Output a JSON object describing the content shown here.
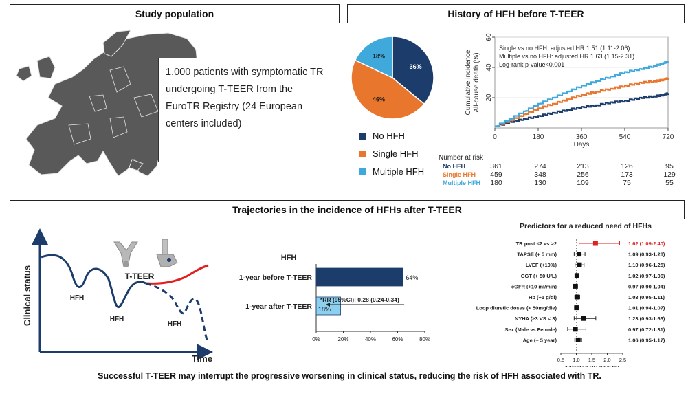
{
  "panels": {
    "study": {
      "title": "Study population",
      "text": "1,000 patients with symptomatic TR undergoing T-TEER from the EuroTR Registry (24 European centers included)"
    },
    "history": {
      "title": "History of HFH before T-TEER"
    },
    "trajectories": {
      "title": "Trajectories in the incidence of HFHs after T-TEER"
    }
  },
  "colors": {
    "no_hfh": "#1c3d6b",
    "single_hfh": "#e8762d",
    "multiple_hfh": "#40a9dc",
    "post_red": "#e02020"
  },
  "pie": {
    "slices": [
      {
        "label": "No HFH",
        "pct": 36,
        "pct_label": "36%"
      },
      {
        "label": "Single HFH",
        "pct": 46,
        "pct_label": "46%"
      },
      {
        "label": "Multiple HFH",
        "pct": 18,
        "pct_label": "18%"
      }
    ]
  },
  "km": {
    "ylabel_line1": "Cumulative incidence",
    "ylabel_line2": "All-cause death (%)",
    "xlabel": "Days",
    "yticks": [
      "20",
      "40",
      "60"
    ],
    "xticks": [
      "0",
      "180",
      "360",
      "540",
      "720"
    ],
    "annotations": [
      "Single vs no HFH: adjusted HR 1.51 (1.11-2.06)",
      "Multiple vs no HFH: adjusted HR 1.63 (1.15-2.31)",
      "Log-rank p-value<0.001"
    ],
    "risk_title": "Number at risk",
    "risk_rows": [
      {
        "name": "No HFH",
        "values": [
          "361",
          "274",
          "213",
          "126",
          "95"
        ]
      },
      {
        "name": "Single HFH",
        "values": [
          "459",
          "348",
          "256",
          "173",
          "129"
        ]
      },
      {
        "name": "Multiple HFH",
        "values": [
          "180",
          "130",
          "109",
          "75",
          "55"
        ]
      }
    ]
  },
  "trajectory": {
    "ylabel": "Clinical status",
    "xlabel": "Time",
    "hfh_labels": [
      "HFH",
      "HFH",
      "HFH"
    ],
    "event_label": "T-TEER"
  },
  "bar_chart": {
    "title": "HFH",
    "rr_text": "*RR (95%CI): 0.28 (0.24-0.34)",
    "xticks": [
      "0%",
      "20%",
      "40%",
      "60%",
      "80%"
    ]
  },
  "forest": {
    "title": "Predictors for a reduced need of HFHs",
    "xlabel": "Adjusted OR (95%CI)",
    "xticks": [
      "0.5",
      "1.0",
      "1.5",
      "2.0",
      "2.5"
    ]
  },
  "footer": "Successful T-TEER may interrupt the progressive worsening in clinical status, reducing the risk of HFH associated with TR.",
  "chart_data": [
    {
      "type": "pie",
      "title": "History of HFH before T-TEER",
      "categories": [
        "No HFH",
        "Single HFH",
        "Multiple HFH"
      ],
      "values": [
        36,
        46,
        18
      ]
    },
    {
      "type": "line",
      "title": "Cumulative incidence of all-cause death",
      "xlabel": "Days",
      "ylabel": "Cumulative incidence All-cause death (%)",
      "xlim": [
        0,
        720
      ],
      "ylim": [
        0,
        60
      ],
      "series": [
        {
          "name": "No HFH",
          "x": [
            0,
            60,
            120,
            180,
            240,
            300,
            360,
            420,
            480,
            540,
            600,
            660,
            700,
            720
          ],
          "values": [
            1,
            4,
            6,
            8,
            10,
            12,
            14,
            15,
            17,
            18,
            20,
            21,
            22,
            23
          ]
        },
        {
          "name": "Single HFH",
          "x": [
            0,
            60,
            120,
            180,
            240,
            300,
            360,
            420,
            480,
            540,
            600,
            660,
            700,
            720
          ],
          "values": [
            1,
            5,
            9,
            13,
            16,
            19,
            22,
            24,
            26,
            28,
            30,
            31,
            32,
            33
          ]
        },
        {
          "name": "Multiple HFH",
          "x": [
            0,
            60,
            120,
            180,
            240,
            300,
            360,
            420,
            480,
            540,
            600,
            660,
            700,
            720
          ],
          "values": [
            1,
            6,
            11,
            16,
            20,
            24,
            28,
            31,
            34,
            37,
            39,
            41,
            43,
            44
          ]
        }
      ]
    },
    {
      "type": "bar",
      "title": "HFH",
      "categories": [
        "1-year before T-TEER",
        "1-year after T-TEER"
      ],
      "values": [
        64,
        18
      ],
      "labels": [
        "64%",
        "18%"
      ],
      "xlim": [
        0,
        80
      ]
    },
    {
      "type": "scatter",
      "title": "Predictors for a reduced need of HFHs",
      "xlabel": "Adjusted OR (95%CI)",
      "xlim": [
        0.5,
        2.5
      ],
      "rows": [
        {
          "label": "TR post ≤2 vs >2",
          "or": 1.62,
          "lo": 1.09,
          "hi": 2.4,
          "text": "1.62 (1.09-2.40)",
          "highlight": true
        },
        {
          "label": "TAPSE (+ 5 mm)",
          "or": 1.09,
          "lo": 0.93,
          "hi": 1.28,
          "text": "1.09 (0.93-1.28)"
        },
        {
          "label": "LVEF (+10%)",
          "or": 1.1,
          "lo": 0.96,
          "hi": 1.25,
          "text": "1.10 (0.96-1.25)"
        },
        {
          "label": "GGT (+ 50 U/L)",
          "or": 1.02,
          "lo": 0.97,
          "hi": 1.06,
          "text": "1.02 (0.97-1.06)"
        },
        {
          "label": "eGFR (+10 ml/min)",
          "or": 0.97,
          "lo": 0.9,
          "hi": 1.04,
          "text": "0.97 (0.90-1.04)"
        },
        {
          "label": "Hb (+1 g/dl)",
          "or": 1.03,
          "lo": 0.95,
          "hi": 1.11,
          "text": "1.03 (0.95-1.11)"
        },
        {
          "label": "Loop diuretic doses (+ 50mg/die)",
          "or": 1.01,
          "lo": 0.94,
          "hi": 1.07,
          "text": "1.01 (0.94-1.07)"
        },
        {
          "label": "NYHA (≥3 VS < 3)",
          "or": 1.23,
          "lo": 0.93,
          "hi": 1.63,
          "text": "1.23 (0.93-1.63)"
        },
        {
          "label": "Sex (Male vs Female)",
          "or": 0.97,
          "lo": 0.72,
          "hi": 1.31,
          "text": "0.97 (0.72-1.31)"
        },
        {
          "label": "Age (+ 5 year)",
          "or": 1.06,
          "lo": 0.95,
          "hi": 1.17,
          "text": "1.06 (0.95-1.17)"
        }
      ]
    }
  ]
}
